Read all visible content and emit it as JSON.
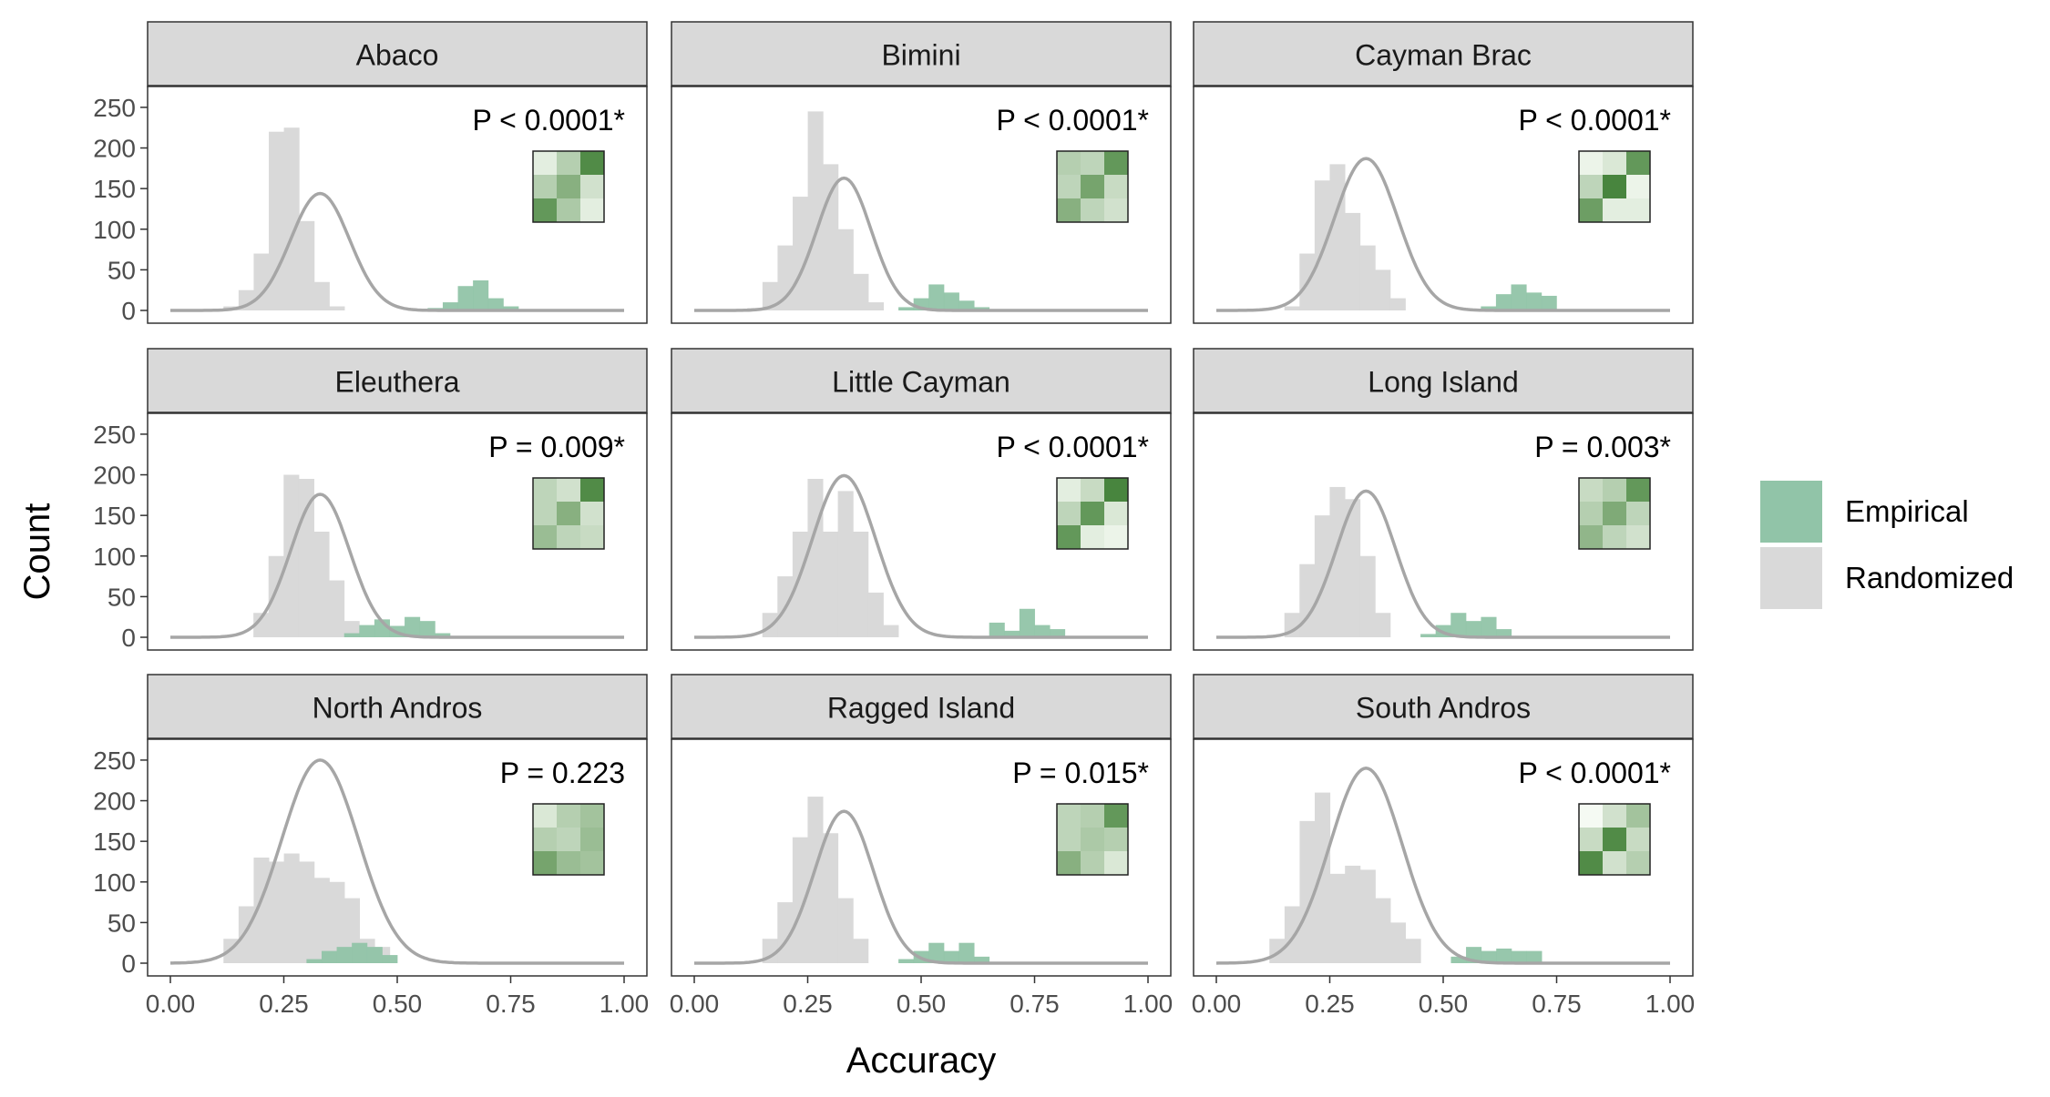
{
  "chart_data": {
    "type": "bar",
    "layout": "facet-grid-3x3",
    "xlabel": "Accuracy",
    "ylabel": "Count",
    "xlim": [
      0,
      1
    ],
    "ylim": [
      0,
      260
    ],
    "x_ticks": [
      "0.00",
      "0.25",
      "0.50",
      "0.75",
      "1.00"
    ],
    "y_ticks": [
      "0",
      "50",
      "100",
      "150",
      "200",
      "250"
    ],
    "bin_width": 0.0333,
    "grid": false,
    "legend": {
      "placement": "right",
      "items": [
        {
          "label": "Empirical",
          "color": "#91c4a8"
        },
        {
          "label": "Randomized",
          "color": "#d9d9d9"
        }
      ]
    },
    "colors": {
      "empirical": "#91c4a8",
      "randomized": "#d9d9d9",
      "density_line": "#a6a6a6",
      "strip": "#d9d9d9",
      "heat_low": "#f5faf3",
      "heat_high": "#3f7f34"
    },
    "panels": [
      {
        "title": "Abaco",
        "pvalue": "P < 0.0001*",
        "randomized": {
          "x_start": 0.117,
          "values": [
            5,
            25,
            70,
            220,
            225,
            110,
            35,
            5
          ]
        },
        "empirical": {
          "x_start": 0.567,
          "values": [
            3,
            10,
            30,
            37,
            15,
            5
          ]
        },
        "density": {
          "mean": 0.33,
          "sd": 0.065,
          "peak": 144
        },
        "confusion": [
          0.1,
          0.35,
          0.9,
          0.35,
          0.6,
          0.2,
          0.8,
          0.4,
          0.1
        ]
      },
      {
        "title": "Bimini",
        "pvalue": "P < 0.0001*",
        "randomized": {
          "x_start": 0.117,
          "values": [
            3,
            35,
            80,
            140,
            245,
            180,
            100,
            45,
            10
          ]
        },
        "empirical": {
          "x_start": 0.45,
          "values": [
            4,
            15,
            32,
            22,
            12,
            4
          ]
        },
        "density": {
          "mean": 0.33,
          "sd": 0.06,
          "peak": 163
        },
        "confusion": [
          0.35,
          0.3,
          0.8,
          0.3,
          0.7,
          0.25,
          0.6,
          0.3,
          0.2
        ]
      },
      {
        "title": "Cayman Brac",
        "pvalue": "P < 0.0001*",
        "randomized": {
          "x_start": 0.15,
          "values": [
            5,
            70,
            160,
            180,
            120,
            80,
            50,
            15
          ]
        },
        "empirical": {
          "x_start": 0.583,
          "values": [
            5,
            20,
            32,
            22,
            18
          ]
        },
        "density": {
          "mean": 0.33,
          "sd": 0.07,
          "peak": 187
        },
        "confusion": [
          0.05,
          0.15,
          0.8,
          0.3,
          0.95,
          0.05,
          0.75,
          0.1,
          0.1
        ]
      },
      {
        "title": "Eleuthera",
        "pvalue": "P = 0.009*",
        "randomized": {
          "x_start": 0.183,
          "values": [
            30,
            100,
            200,
            195,
            130,
            70,
            20
          ]
        },
        "empirical": {
          "x_start": 0.383,
          "values": [
            5,
            15,
            22,
            14,
            25,
            20,
            5
          ]
        },
        "density": {
          "mean": 0.33,
          "sd": 0.065,
          "peak": 176
        },
        "confusion": [
          0.3,
          0.2,
          0.9,
          0.3,
          0.6,
          0.2,
          0.5,
          0.3,
          0.25
        ]
      },
      {
        "title": "Little Cayman",
        "pvalue": "P < 0.0001*",
        "randomized": {
          "x_start": 0.15,
          "values": [
            30,
            75,
            130,
            195,
            130,
            180,
            130,
            55,
            15
          ]
        },
        "empirical": {
          "x_start": 0.65,
          "values": [
            18,
            8,
            35,
            15,
            10
          ]
        },
        "density": {
          "mean": 0.33,
          "sd": 0.07,
          "peak": 199
        },
        "confusion": [
          0.1,
          0.25,
          0.95,
          0.3,
          0.8,
          0.15,
          0.8,
          0.1,
          0.05
        ]
      },
      {
        "title": "Long Island",
        "pvalue": "P = 0.003*",
        "randomized": {
          "x_start": 0.15,
          "values": [
            30,
            90,
            150,
            185,
            170,
            100,
            30
          ]
        },
        "empirical": {
          "x_start": 0.45,
          "values": [
            4,
            15,
            30,
            20,
            25,
            10
          ]
        },
        "density": {
          "mean": 0.33,
          "sd": 0.065,
          "peak": 180
        },
        "confusion": [
          0.25,
          0.35,
          0.8,
          0.35,
          0.65,
          0.3,
          0.55,
          0.3,
          0.2
        ]
      },
      {
        "title": "North Andros",
        "pvalue": "P = 0.223",
        "randomized": {
          "x_start": 0.117,
          "values": [
            30,
            70,
            130,
            125,
            135,
            125,
            105,
            100,
            80,
            30,
            20
          ]
        },
        "empirical": {
          "x_start": 0.3,
          "values": [
            5,
            15,
            20,
            25,
            20,
            10
          ]
        },
        "density": {
          "mean": 0.33,
          "sd": 0.085,
          "peak": 250
        },
        "confusion": [
          0.15,
          0.35,
          0.45,
          0.35,
          0.3,
          0.5,
          0.7,
          0.5,
          0.45
        ]
      },
      {
        "title": "Ragged Island",
        "pvalue": "P = 0.015*",
        "randomized": {
          "x_start": 0.15,
          "values": [
            30,
            75,
            155,
            205,
            160,
            80,
            30
          ]
        },
        "empirical": {
          "x_start": 0.45,
          "values": [
            5,
            15,
            25,
            15,
            25,
            8
          ]
        },
        "density": {
          "mean": 0.33,
          "sd": 0.065,
          "peak": 187
        },
        "confusion": [
          0.3,
          0.35,
          0.8,
          0.3,
          0.4,
          0.35,
          0.6,
          0.35,
          0.15
        ]
      },
      {
        "title": "South Andros",
        "pvalue": "P < 0.0001*",
        "randomized": {
          "x_start": 0.117,
          "values": [
            30,
            70,
            175,
            210,
            110,
            120,
            115,
            80,
            50,
            30
          ]
        },
        "empirical": {
          "x_start": 0.517,
          "values": [
            8,
            20,
            15,
            18,
            15,
            15
          ]
        },
        "density": {
          "mean": 0.33,
          "sd": 0.08,
          "peak": 240
        },
        "confusion": [
          0.0,
          0.2,
          0.45,
          0.25,
          0.9,
          0.25,
          0.9,
          0.2,
          0.35
        ]
      }
    ]
  }
}
